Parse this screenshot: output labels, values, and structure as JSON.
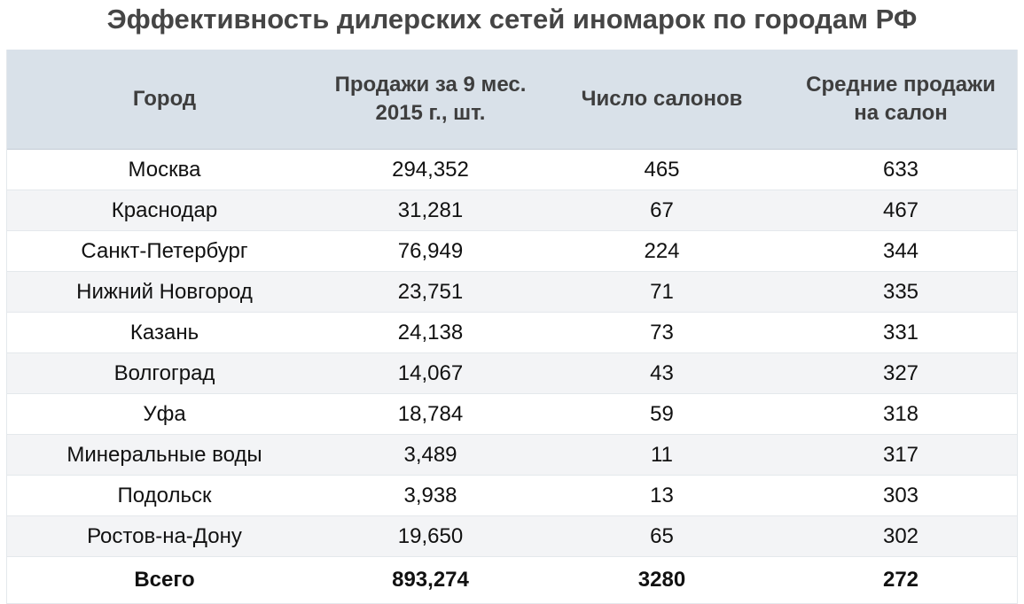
{
  "title": "Эффективность дилерских сетей иномарок по городам РФ",
  "table": {
    "headers": [
      "Город",
      "Продажи за 9 мес. 2015 г., шт.",
      "Число салонов",
      "Средние продажи на салон"
    ],
    "rows": [
      [
        "Москва",
        "294,352",
        "465",
        "633"
      ],
      [
        "Краснодар",
        "31,281",
        "67",
        "467"
      ],
      [
        "Санкт-Петербург",
        "76,949",
        "224",
        "344"
      ],
      [
        "Нижний Новгород",
        "23,751",
        "71",
        "335"
      ],
      [
        "Казань",
        "24,138",
        "73",
        "331"
      ],
      [
        "Волгоград",
        "14,067",
        "43",
        "327"
      ],
      [
        "Уфа",
        "18,784",
        "59",
        "318"
      ],
      [
        "Минеральные воды",
        "3,489",
        "11",
        "317"
      ],
      [
        "Подольск",
        "3,938",
        "13",
        "303"
      ],
      [
        "Ростов-на-Дону",
        "19,650",
        "65",
        "302"
      ]
    ],
    "total": [
      "Всего",
      "893,274",
      "3280",
      "272"
    ]
  },
  "colors": {
    "header_bg": "#d9e1e9",
    "stripe_bg": "#f3f4f6",
    "title_color": "#454545"
  }
}
